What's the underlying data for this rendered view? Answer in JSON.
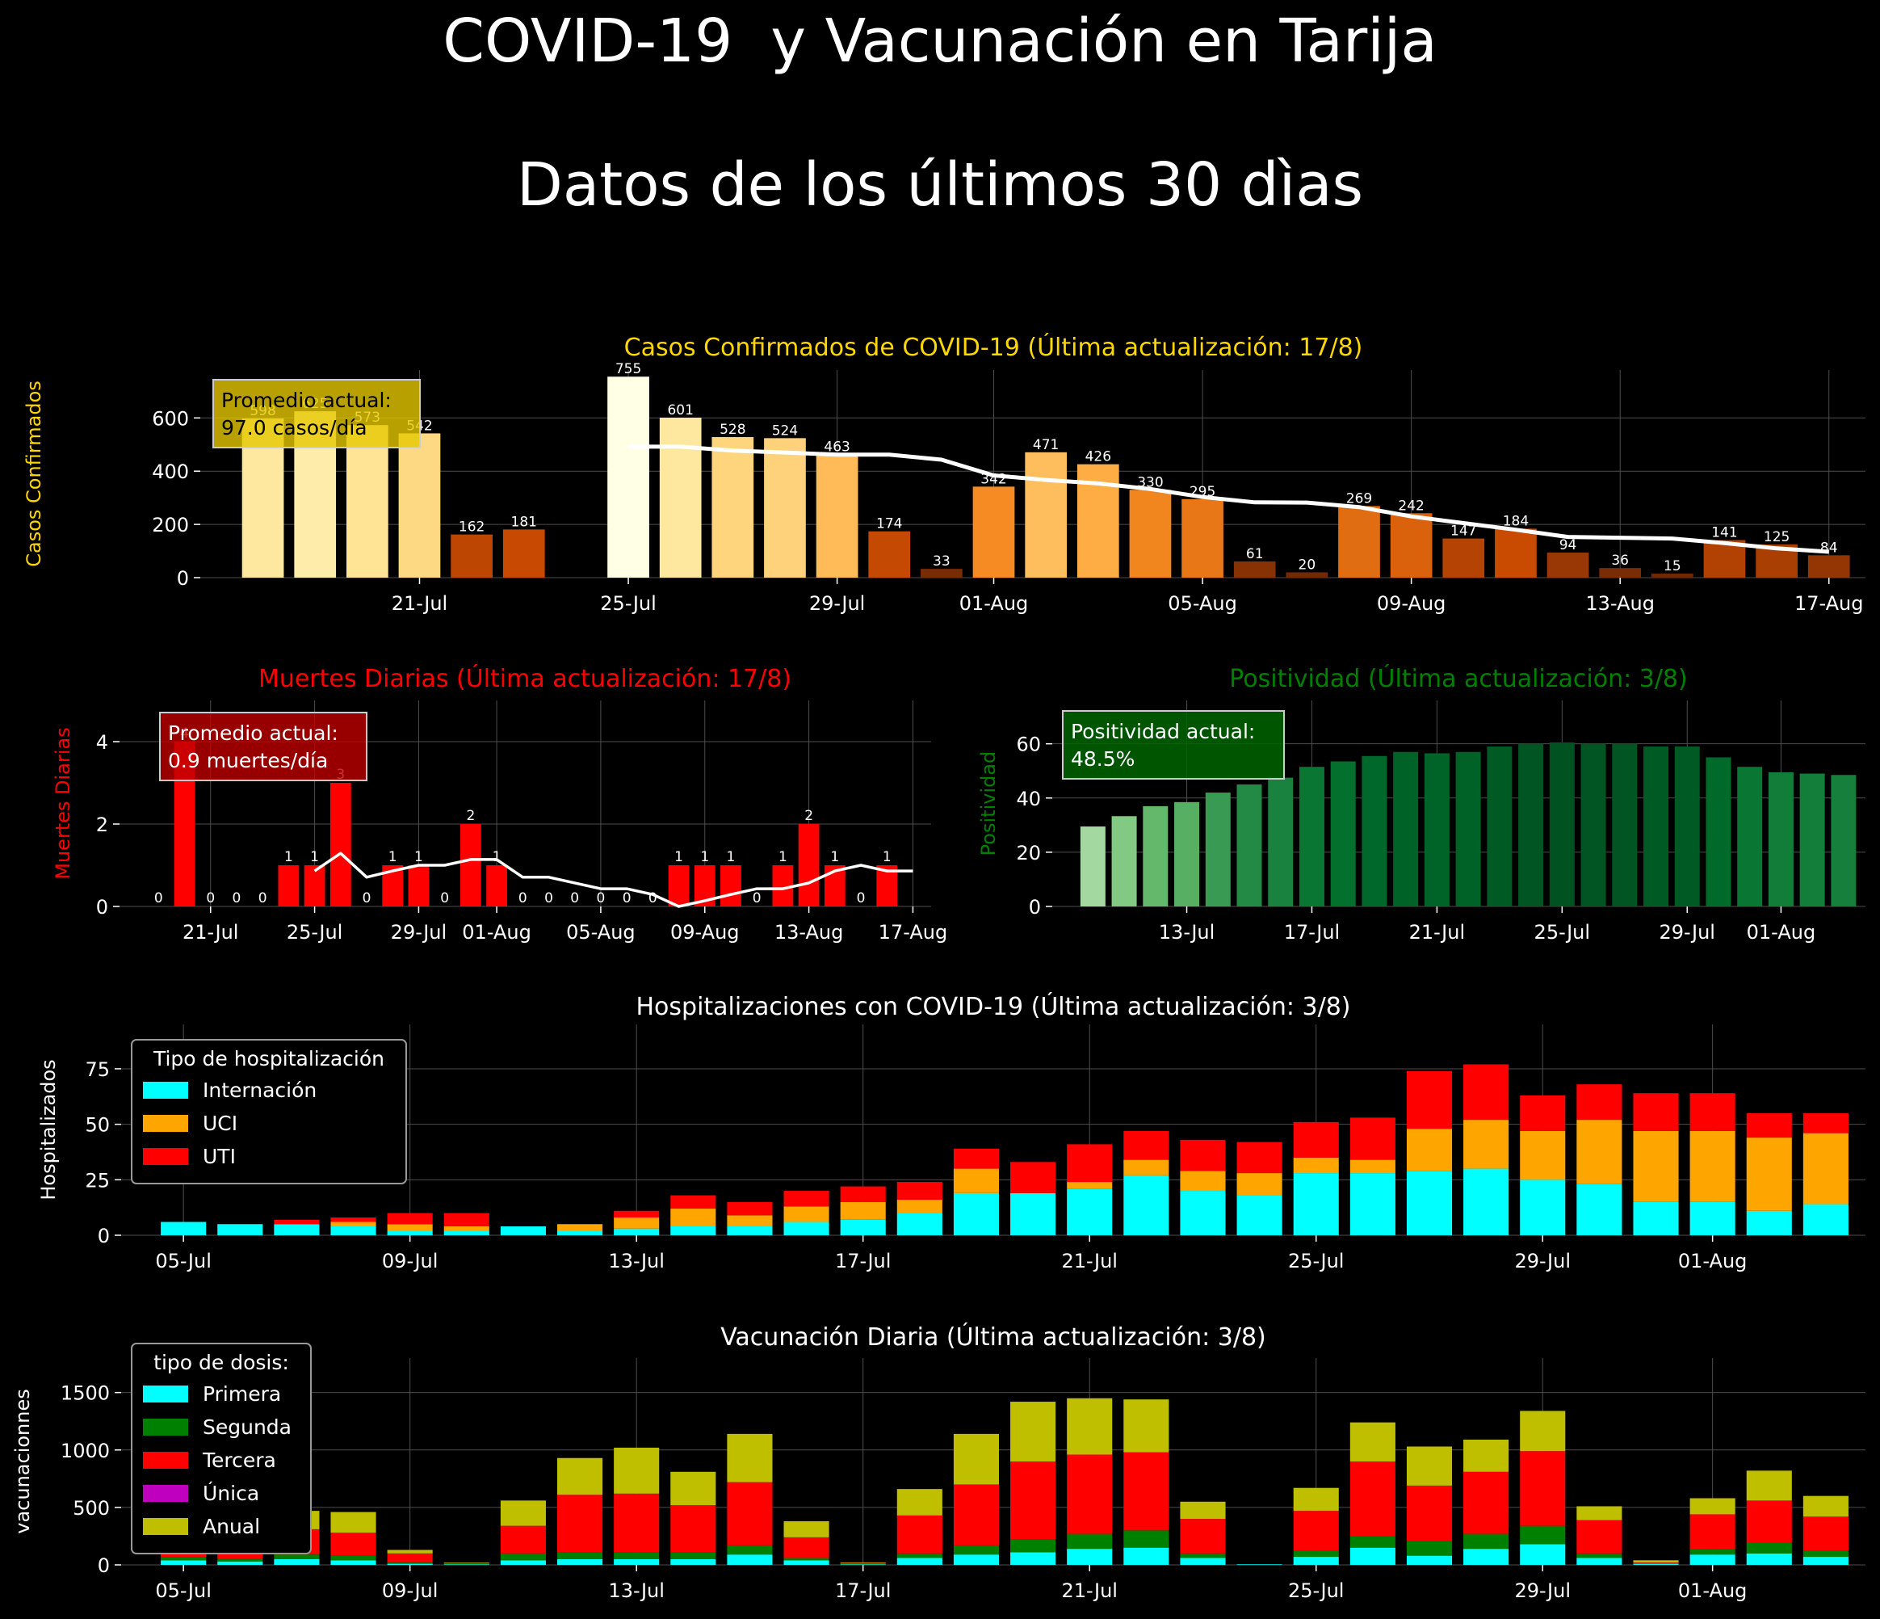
{
  "figure": {
    "title_line1": "COVID-19  y Vacunación en Tarija",
    "title_line2": "Datos de los últimos 30 dìas"
  },
  "colors": {
    "background": "#000000",
    "grid": "#4d4d4d",
    "text": "#ffffff",
    "cases_title": "#ffd700",
    "deaths_title": "#ff0000",
    "positivity_title": "#008000",
    "internacion": "#00ffff",
    "uci": "#ffa500",
    "uti": "#ff0000",
    "primera": "#00ffff",
    "segunda": "#008000",
    "tercera": "#ff0000",
    "unica": "#bf00bf",
    "anual": "#bfbf00"
  },
  "chart_data": [
    {
      "id": "cases",
      "type": "bar",
      "title": "Casos Confirmados de COVID-19 (Última actualización: 17/8)",
      "ylabel": "Casos Confirmados",
      "ylim": [
        0,
        780
      ],
      "yticks": [
        0,
        200,
        400,
        600
      ],
      "categories": [
        "18-Jul",
        "19-Jul",
        "20-Jul",
        "21-Jul",
        "22-Jul",
        "23-Jul",
        "24-Jul",
        "25-Jul",
        "26-Jul",
        "27-Jul",
        "28-Jul",
        "29-Jul",
        "30-Jul",
        "31-Jul",
        "01-Aug",
        "02-Aug",
        "03-Aug",
        "04-Aug",
        "05-Aug",
        "06-Aug",
        "07-Aug",
        "08-Aug",
        "09-Aug",
        "10-Aug",
        "11-Aug",
        "12-Aug",
        "13-Aug",
        "14-Aug",
        "15-Aug",
        "16-Aug",
        "17-Aug"
      ],
      "xticks": [
        "21-Jul",
        "25-Jul",
        "29-Jul",
        "01-Aug",
        "05-Aug",
        "09-Aug",
        "13-Aug",
        "17-Aug"
      ],
      "values": [
        598,
        625,
        573,
        542,
        162,
        181,
        null,
        755,
        601,
        528,
        524,
        463,
        174,
        33,
        342,
        471,
        426,
        330,
        295,
        61,
        20,
        269,
        242,
        147,
        184,
        94,
        36,
        15,
        141,
        125,
        84
      ],
      "value_labels": [
        "598",
        "625",
        "573",
        "542",
        "162",
        "181",
        "",
        "755",
        "601",
        "528",
        "524",
        "463",
        "174",
        "33",
        "342",
        "471",
        "426",
        "330",
        "295",
        "61",
        "20",
        "269",
        "242",
        "147",
        "184",
        "94",
        "36",
        "15",
        "141",
        "125",
        "84"
      ],
      "series": [
        {
          "values": [
            null,
            null,
            null,
            null,
            null,
            null,
            null,
            492,
            492,
            477,
            470,
            462,
            462,
            443,
            384,
            367,
            354,
            333,
            303,
            283,
            282,
            265,
            230,
            205,
            180,
            153,
            150,
            147,
            130,
            110,
            97
          ]
        }
      ],
      "annotation": "Promedio actual:\n97.0 casos/día"
    },
    {
      "id": "deaths",
      "type": "bar",
      "title": "Muertes Diarias (Última actualización: 17/8)",
      "ylabel": "Muertes Diarias",
      "ylim": [
        0,
        5
      ],
      "yticks": [
        0,
        2,
        4
      ],
      "categories": [
        "19-Jul",
        "20-Jul",
        "21-Jul",
        "22-Jul",
        "23-Jul",
        "24-Jul",
        "25-Jul",
        "26-Jul",
        "27-Jul",
        "28-Jul",
        "29-Jul",
        "30-Jul",
        "31-Jul",
        "01-Aug",
        "02-Aug",
        "03-Aug",
        "04-Aug",
        "05-Aug",
        "06-Aug",
        "07-Aug",
        "08-Aug",
        "09-Aug",
        "10-Aug",
        "11-Aug",
        "12-Aug",
        "13-Aug",
        "14-Aug",
        "15-Aug",
        "16-Aug",
        "17-Aug"
      ],
      "xticks": [
        "21-Jul",
        "25-Jul",
        "29-Jul",
        "01-Aug",
        "05-Aug",
        "09-Aug",
        "13-Aug",
        "17-Aug"
      ],
      "values": [
        0,
        4,
        0,
        0,
        0,
        1,
        1,
        3,
        0,
        1,
        1,
        0,
        2,
        1,
        0,
        0,
        0,
        0,
        0,
        0,
        1,
        1,
        1,
        0,
        1,
        2,
        1,
        0,
        1,
        null
      ],
      "value_labels": [
        "0",
        "4",
        "0",
        "0",
        "0",
        "1",
        "1",
        "3",
        "0",
        "1",
        "1",
        "0",
        "2",
        "1",
        "0",
        "0",
        "0",
        "0",
        "0",
        "0",
        "1",
        "1",
        "1",
        "0",
        "1",
        "2",
        "1",
        "0",
        "1",
        ""
      ],
      "series": [
        {
          "values": [
            null,
            null,
            null,
            null,
            null,
            null,
            0.86,
            1.29,
            0.71,
            0.86,
            1.0,
            1.0,
            1.14,
            1.14,
            0.71,
            0.71,
            0.57,
            0.43,
            0.43,
            0.29,
            0.0,
            0.14,
            0.29,
            0.43,
            0.43,
            0.57,
            0.86,
            1.0,
            0.86,
            0.86
          ]
        }
      ],
      "annotation": "Promedio actual:\n0.9 muertes/día"
    },
    {
      "id": "positivity",
      "type": "bar",
      "title": "Positividad (Última actualización: 3/8)",
      "ylabel": "Positividad",
      "ylim": [
        0,
        76
      ],
      "yticks": [
        0,
        20,
        40,
        60
      ],
      "categories": [
        "10-Jul",
        "11-Jul",
        "12-Jul",
        "13-Jul",
        "14-Jul",
        "15-Jul",
        "16-Jul",
        "17-Jul",
        "18-Jul",
        "19-Jul",
        "20-Jul",
        "21-Jul",
        "22-Jul",
        "23-Jul",
        "24-Jul",
        "25-Jul",
        "26-Jul",
        "27-Jul",
        "28-Jul",
        "29-Jul",
        "30-Jul",
        "31-Jul",
        "01-Aug",
        "02-Aug",
        "03-Aug"
      ],
      "xticks": [
        "13-Jul",
        "17-Jul",
        "21-Jul",
        "25-Jul",
        "29-Jul",
        "01-Aug"
      ],
      "values": [
        29.5,
        33.3,
        37.0,
        38.5,
        42.0,
        45.0,
        47.5,
        51.5,
        53.5,
        55.5,
        57.0,
        56.5,
        57.0,
        59.0,
        60.0,
        60.5,
        60.0,
        60.0,
        59.0,
        59.0,
        55.0,
        51.5,
        49.5,
        49.0,
        48.5
      ],
      "annotation": "Positividad actual:\n48.5%"
    },
    {
      "id": "hospital",
      "type": "bar",
      "title": "Hospitalizaciones con COVID-19 (Última actualización: 3/8)",
      "ylabel": "Hospitalizados",
      "ylim": [
        0,
        95
      ],
      "yticks": [
        0,
        25,
        50,
        75
      ],
      "stacked": true,
      "categories": [
        "05-Jul",
        "06-Jul",
        "07-Jul",
        "08-Jul",
        "09-Jul",
        "10-Jul",
        "11-Jul",
        "12-Jul",
        "13-Jul",
        "14-Jul",
        "15-Jul",
        "16-Jul",
        "17-Jul",
        "18-Jul",
        "19-Jul",
        "20-Jul",
        "21-Jul",
        "22-Jul",
        "23-Jul",
        "24-Jul",
        "25-Jul",
        "26-Jul",
        "27-Jul",
        "28-Jul",
        "29-Jul",
        "30-Jul",
        "31-Jul",
        "01-Aug",
        "02-Aug",
        "03-Aug"
      ],
      "xticks": [
        "05-Jul",
        "09-Jul",
        "13-Jul",
        "17-Jul",
        "21-Jul",
        "25-Jul",
        "29-Jul",
        "01-Aug"
      ],
      "legend_title": "Tipo de hospitalización",
      "legend_position": "upper-left",
      "series": [
        {
          "name": "Internación",
          "values": [
            6,
            5,
            5,
            4,
            2,
            2,
            4,
            2,
            3,
            4,
            4,
            6,
            7,
            10,
            19,
            19,
            21,
            27,
            20,
            18,
            28,
            28,
            29,
            30,
            25,
            23,
            15,
            15,
            11,
            14
          ]
        },
        {
          "name": "UCI",
          "values": [
            0,
            0,
            0,
            2,
            3,
            2,
            0,
            3,
            5,
            8,
            5,
            7,
            8,
            6,
            11,
            0,
            3,
            7,
            9,
            10,
            7,
            6,
            19,
            22,
            22,
            29,
            32,
            32,
            33,
            32
          ]
        },
        {
          "name": "UTI",
          "values": [
            0,
            0,
            2,
            2,
            5,
            6,
            0,
            0,
            3,
            6,
            6,
            7,
            7,
            8,
            9,
            14,
            17,
            13,
            14,
            14,
            16,
            19,
            26,
            25,
            16,
            16,
            17,
            17,
            11,
            9
          ]
        }
      ]
    },
    {
      "id": "vaccination",
      "type": "bar",
      "title": "Vacunación Diaria (Última actualización: 3/8)",
      "ylabel": "vacunacionnes",
      "ylim": [
        0,
        1800
      ],
      "yticks": [
        0,
        500,
        1000,
        1500
      ],
      "stacked": true,
      "categories": [
        "05-Jul",
        "06-Jul",
        "07-Jul",
        "08-Jul",
        "09-Jul",
        "10-Jul",
        "11-Jul",
        "12-Jul",
        "13-Jul",
        "14-Jul",
        "15-Jul",
        "16-Jul",
        "17-Jul",
        "18-Jul",
        "19-Jul",
        "20-Jul",
        "21-Jul",
        "22-Jul",
        "23-Jul",
        "24-Jul",
        "25-Jul",
        "26-Jul",
        "27-Jul",
        "28-Jul",
        "29-Jul",
        "30-Jul",
        "31-Jul",
        "01-Aug",
        "02-Aug",
        "03-Aug"
      ],
      "xticks": [
        "05-Jul",
        "09-Jul",
        "13-Jul",
        "17-Jul",
        "21-Jul",
        "25-Jul",
        "29-Jul",
        "01-Aug"
      ],
      "legend_title": "tipo de dosis:",
      "legend_position": "upper-left",
      "series": [
        {
          "name": "Primera",
          "values": [
            40,
            30,
            50,
            40,
            10,
            5,
            40,
            50,
            50,
            50,
            90,
            40,
            5,
            60,
            90,
            110,
            140,
            150,
            60,
            5,
            70,
            150,
            80,
            140,
            180,
            60,
            10,
            90,
            100,
            70
          ]
        },
        {
          "name": "Segunda",
          "values": [
            30,
            20,
            40,
            40,
            10,
            5,
            60,
            60,
            60,
            60,
            80,
            20,
            2,
            40,
            80,
            110,
            130,
            150,
            40,
            0,
            50,
            100,
            130,
            130,
            160,
            40,
            5,
            50,
            90,
            50
          ]
        },
        {
          "name": "Tercera",
          "values": [
            150,
            120,
            220,
            200,
            80,
            5,
            240,
            500,
            510,
            410,
            550,
            180,
            10,
            330,
            530,
            680,
            690,
            680,
            300,
            0,
            350,
            650,
            480,
            540,
            650,
            290,
            5,
            300,
            370,
            300
          ]
        },
        {
          "name": "Única",
          "values": [
            0,
            0,
            0,
            0,
            0,
            0,
            0,
            0,
            0,
            0,
            0,
            0,
            0,
            0,
            0,
            0,
            0,
            0,
            0,
            0,
            0,
            0,
            0,
            0,
            0,
            0,
            0,
            0,
            0,
            0
          ]
        },
        {
          "name": "Anual",
          "values": [
            150,
            130,
            160,
            180,
            30,
            5,
            220,
            320,
            400,
            290,
            420,
            140,
            5,
            230,
            440,
            520,
            490,
            460,
            150,
            0,
            200,
            340,
            340,
            280,
            350,
            120,
            20,
            140,
            260,
            180
          ]
        }
      ]
    }
  ]
}
